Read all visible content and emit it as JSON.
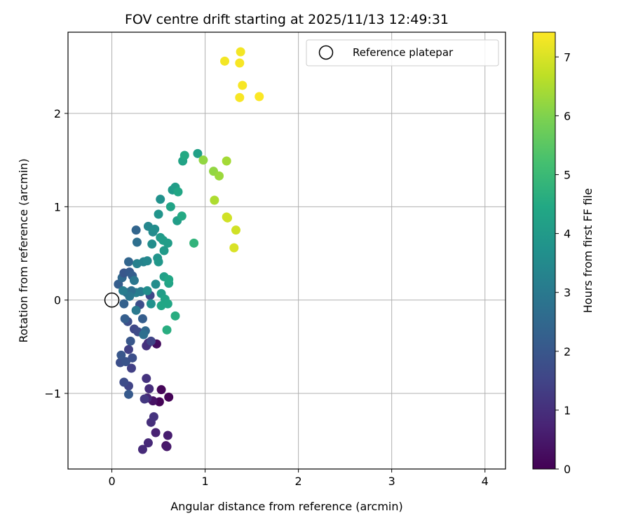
{
  "chart_data": {
    "type": "scatter",
    "title": "FOV centre drift starting at 2025/11/13 12:49:31",
    "xlabel": "Angular distance from reference (arcmin)",
    "ylabel": "Rotation from reference (arcmin)",
    "xlim": [
      -0.47,
      4.22
    ],
    "ylim": [
      -1.81,
      2.87
    ],
    "xticks": [
      0,
      1,
      2,
      3,
      4
    ],
    "xtick_labels": [
      "0",
      "1",
      "2",
      "3",
      "4"
    ],
    "yticks": [
      -1,
      0,
      1,
      2
    ],
    "ytick_labels": [
      "−1",
      "0",
      "1",
      "2"
    ],
    "grid": true,
    "colorbar": {
      "label": "Hours from first FF file",
      "range": [
        0,
        7.42
      ],
      "ticks": [
        0,
        1,
        2,
        3,
        4,
        5,
        6,
        7
      ],
      "tick_labels": [
        "0",
        "1",
        "2",
        "3",
        "4",
        "5",
        "6",
        "7"
      ],
      "colormap": "viridis"
    },
    "legend": {
      "label": "Reference platepar",
      "position": "top-right"
    },
    "reference_point": {
      "x": 0,
      "y": 0
    },
    "points": [
      {
        "x": 0.51,
        "y": -1.09,
        "t": 0.05
      },
      {
        "x": 0.61,
        "y": -1.04,
        "t": 0.05
      },
      {
        "x": 0.53,
        "y": -0.96,
        "t": 0.1
      },
      {
        "x": 0.58,
        "y": -1.56,
        "t": 0.3
      },
      {
        "x": 0.44,
        "y": -1.08,
        "t": 0.35
      },
      {
        "x": 0.48,
        "y": -0.47,
        "t": 0.25
      },
      {
        "x": 0.59,
        "y": -1.57,
        "t": 0.5
      },
      {
        "x": 0.6,
        "y": -1.45,
        "t": 0.6
      },
      {
        "x": 0.47,
        "y": -1.42,
        "t": 0.7
      },
      {
        "x": 0.39,
        "y": -1.53,
        "t": 0.85
      },
      {
        "x": 0.33,
        "y": -1.6,
        "t": 0.9
      },
      {
        "x": 0.38,
        "y": -1.05,
        "t": 0.8
      },
      {
        "x": 0.4,
        "y": -0.95,
        "t": 0.95
      },
      {
        "x": 0.42,
        "y": -1.31,
        "t": 1.0
      },
      {
        "x": 0.45,
        "y": -1.25,
        "t": 1.1
      },
      {
        "x": 0.37,
        "y": -0.84,
        "t": 1.1
      },
      {
        "x": 0.39,
        "y": -0.46,
        "t": 0.9
      },
      {
        "x": 0.37,
        "y": -0.49,
        "t": 1.05
      },
      {
        "x": 0.35,
        "y": -1.06,
        "t": 1.2
      },
      {
        "x": 0.21,
        "y": -0.73,
        "t": 1.4
      },
      {
        "x": 0.18,
        "y": -0.92,
        "t": 1.5
      },
      {
        "x": 0.18,
        "y": -0.53,
        "t": 1.4
      },
      {
        "x": 0.13,
        "y": -0.88,
        "t": 1.7
      },
      {
        "x": 0.09,
        "y": -0.67,
        "t": 1.8
      },
      {
        "x": 0.1,
        "y": -0.59,
        "t": 2.0
      },
      {
        "x": 0.15,
        "y": -0.66,
        "t": 1.9
      },
      {
        "x": 0.18,
        "y": -1.01,
        "t": 2.1
      },
      {
        "x": 0.22,
        "y": -0.62,
        "t": 1.8
      },
      {
        "x": 0.2,
        "y": -0.44,
        "t": 2.0
      },
      {
        "x": 0.24,
        "y": -0.31,
        "t": 1.6
      },
      {
        "x": 0.28,
        "y": -0.34,
        "t": 1.7
      },
      {
        "x": 0.17,
        "y": -0.23,
        "t": 1.8
      },
      {
        "x": 0.14,
        "y": -0.2,
        "t": 2.2
      },
      {
        "x": 0.3,
        "y": -0.05,
        "t": 1.8
      },
      {
        "x": 0.41,
        "y": 0.05,
        "t": 1.6
      },
      {
        "x": 0.42,
        "y": -0.44,
        "t": 1.5
      },
      {
        "x": 0.33,
        "y": -0.2,
        "t": 2.2
      },
      {
        "x": 0.36,
        "y": -0.33,
        "t": 2.5
      },
      {
        "x": 0.34,
        "y": -0.37,
        "t": 2.7
      },
      {
        "x": 0.13,
        "y": -0.04,
        "t": 2.3
      },
      {
        "x": 0.16,
        "y": 0.08,
        "t": 2.4
      },
      {
        "x": 0.07,
        "y": 0.17,
        "t": 2.2
      },
      {
        "x": 0.11,
        "y": 0.24,
        "t": 2.5
      },
      {
        "x": 0.13,
        "y": 0.29,
        "t": 2.0
      },
      {
        "x": 0.19,
        "y": 0.3,
        "t": 2.1
      },
      {
        "x": 0.22,
        "y": 0.26,
        "t": 2.2
      },
      {
        "x": 0.18,
        "y": 0.41,
        "t": 2.4
      },
      {
        "x": 0.24,
        "y": 0.21,
        "t": 2.9
      },
      {
        "x": 0.26,
        "y": -0.11,
        "t": 3.0
      },
      {
        "x": 0.26,
        "y": 0.08,
        "t": 3.2
      },
      {
        "x": 0.31,
        "y": 0.09,
        "t": 3.1
      },
      {
        "x": 0.21,
        "y": 0.1,
        "t": 2.7
      },
      {
        "x": 0.19,
        "y": 0.04,
        "t": 2.9
      },
      {
        "x": 0.12,
        "y": 0.1,
        "t": 3.1
      },
      {
        "x": 0.26,
        "y": 0.75,
        "t": 2.4
      },
      {
        "x": 0.27,
        "y": 0.62,
        "t": 2.7
      },
      {
        "x": 0.27,
        "y": 0.39,
        "t": 3.2
      },
      {
        "x": 0.34,
        "y": 0.41,
        "t": 3.3
      },
      {
        "x": 0.38,
        "y": 0.42,
        "t": 3.4
      },
      {
        "x": 0.39,
        "y": 0.79,
        "t": 3.4
      },
      {
        "x": 0.44,
        "y": 0.73,
        "t": 3.5
      },
      {
        "x": 0.46,
        "y": 0.76,
        "t": 3.6
      },
      {
        "x": 0.43,
        "y": 0.6,
        "t": 3.6
      },
      {
        "x": 0.38,
        "y": 0.1,
        "t": 3.6
      },
      {
        "x": 0.42,
        "y": -0.04,
        "t": 3.7
      },
      {
        "x": 0.47,
        "y": 0.17,
        "t": 3.6
      },
      {
        "x": 0.49,
        "y": 0.45,
        "t": 3.8
      },
      {
        "x": 0.5,
        "y": 0.41,
        "t": 3.9
      },
      {
        "x": 0.5,
        "y": 0.92,
        "t": 3.8
      },
      {
        "x": 0.52,
        "y": 1.08,
        "t": 3.7
      },
      {
        "x": 0.52,
        "y": 0.67,
        "t": 4.0
      },
      {
        "x": 0.55,
        "y": 0.64,
        "t": 4.1
      },
      {
        "x": 0.56,
        "y": 0.53,
        "t": 4.0
      },
      {
        "x": 0.6,
        "y": 0.61,
        "t": 4.1
      },
      {
        "x": 0.53,
        "y": 0.07,
        "t": 4.1
      },
      {
        "x": 0.57,
        "y": 0.01,
        "t": 4.3
      },
      {
        "x": 0.53,
        "y": -0.06,
        "t": 4.4
      },
      {
        "x": 0.6,
        "y": -0.04,
        "t": 4.4
      },
      {
        "x": 0.56,
        "y": 0.25,
        "t": 4.2
      },
      {
        "x": 0.61,
        "y": 0.18,
        "t": 4.3
      },
      {
        "x": 0.61,
        "y": 0.22,
        "t": 4.4
      },
      {
        "x": 0.59,
        "y": -0.32,
        "t": 4.6
      },
      {
        "x": 0.68,
        "y": -0.17,
        "t": 4.6
      },
      {
        "x": 0.63,
        "y": 1.0,
        "t": 4.3
      },
      {
        "x": 0.65,
        "y": 1.18,
        "t": 4.0
      },
      {
        "x": 0.68,
        "y": 1.21,
        "t": 4.1
      },
      {
        "x": 0.71,
        "y": 1.16,
        "t": 4.4
      },
      {
        "x": 0.7,
        "y": 0.85,
        "t": 4.1
      },
      {
        "x": 0.75,
        "y": 0.9,
        "t": 4.5
      },
      {
        "x": 0.76,
        "y": 1.49,
        "t": 4.3
      },
      {
        "x": 0.78,
        "y": 1.55,
        "t": 4.5
      },
      {
        "x": 0.92,
        "y": 1.57,
        "t": 4.2
      },
      {
        "x": 0.88,
        "y": 0.61,
        "t": 4.8
      },
      {
        "x": 0.98,
        "y": 1.5,
        "t": 6.2
      },
      {
        "x": 1.09,
        "y": 1.38,
        "t": 6.2
      },
      {
        "x": 1.15,
        "y": 1.33,
        "t": 6.3
      },
      {
        "x": 1.23,
        "y": 1.49,
        "t": 6.4
      },
      {
        "x": 1.1,
        "y": 1.07,
        "t": 6.5
      },
      {
        "x": 1.23,
        "y": 0.89,
        "t": 6.9
      },
      {
        "x": 1.24,
        "y": 0.88,
        "t": 6.9
      },
      {
        "x": 1.33,
        "y": 0.75,
        "t": 6.9
      },
      {
        "x": 1.31,
        "y": 0.56,
        "t": 7.0
      },
      {
        "x": 1.21,
        "y": 2.56,
        "t": 7.3
      },
      {
        "x": 1.38,
        "y": 2.66,
        "t": 7.3
      },
      {
        "x": 1.37,
        "y": 2.54,
        "t": 7.35
      },
      {
        "x": 1.4,
        "y": 2.3,
        "t": 7.35
      },
      {
        "x": 1.37,
        "y": 2.17,
        "t": 7.35
      },
      {
        "x": 1.58,
        "y": 2.18,
        "t": 7.4
      }
    ]
  }
}
